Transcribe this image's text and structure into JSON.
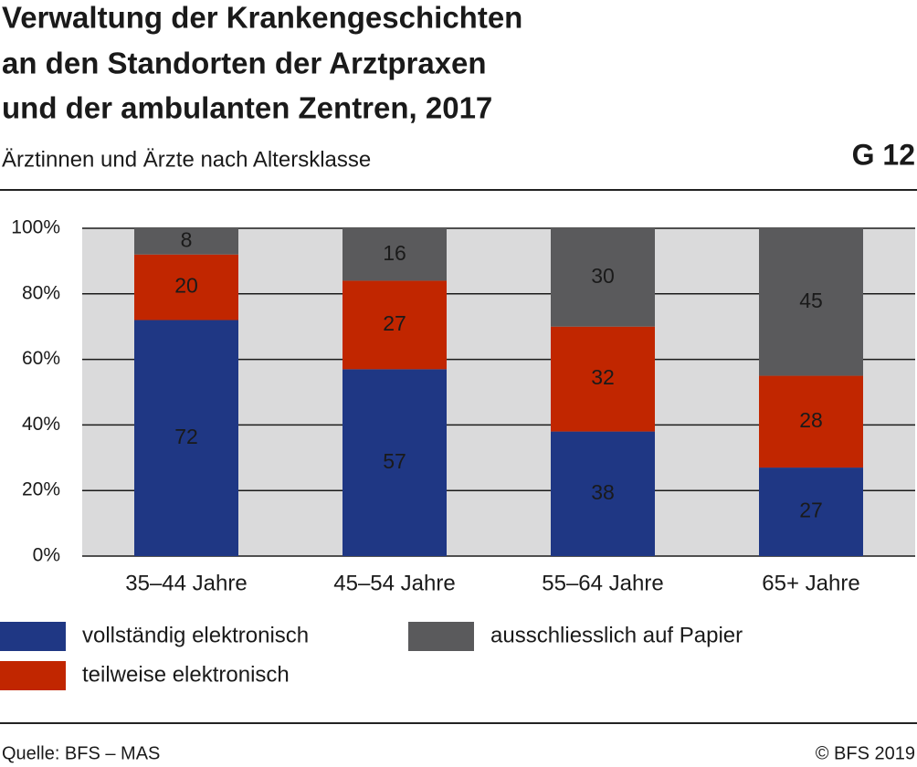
{
  "chart_data": {
    "type": "stacked_bar",
    "title_lines": [
      "Verwaltung der Krankengeschichten",
      "an den Standorten der Arztpraxen",
      "und der ambulanten Zentren, 2017"
    ],
    "subtitle": "Ärztinnen und Ärzte nach Altersklasse",
    "chart_id": "G 12",
    "categories": [
      "35–44 Jahre",
      "45–54 Jahre",
      "55–64 Jahre",
      "65+ Jahre"
    ],
    "series": [
      {
        "name": "vollständig elektronisch",
        "color": "#1f3784",
        "label_color": "#ffffff",
        "values": [
          72,
          57,
          38,
          27
        ]
      },
      {
        "name": "teilweise elektronisch",
        "color": "#c12600",
        "label_color": "#222222",
        "values": [
          20,
          27,
          32,
          28
        ]
      },
      {
        "name": "ausschliesslich auf Papier",
        "color": "#5a5a5c",
        "label_color": "#222222",
        "values": [
          8,
          16,
          30,
          45
        ]
      }
    ],
    "ylim": [
      0,
      100
    ],
    "yticks": [
      {
        "value": 0,
        "label": "0%"
      },
      {
        "value": 20,
        "label": "20%"
      },
      {
        "value": 40,
        "label": "40%"
      },
      {
        "value": 60,
        "label": "60%"
      },
      {
        "value": 80,
        "label": "80%"
      },
      {
        "value": 100,
        "label": "100%"
      }
    ],
    "grid": true,
    "source": "Quelle: BFS – MAS",
    "copyright": "© BFS 2019"
  }
}
